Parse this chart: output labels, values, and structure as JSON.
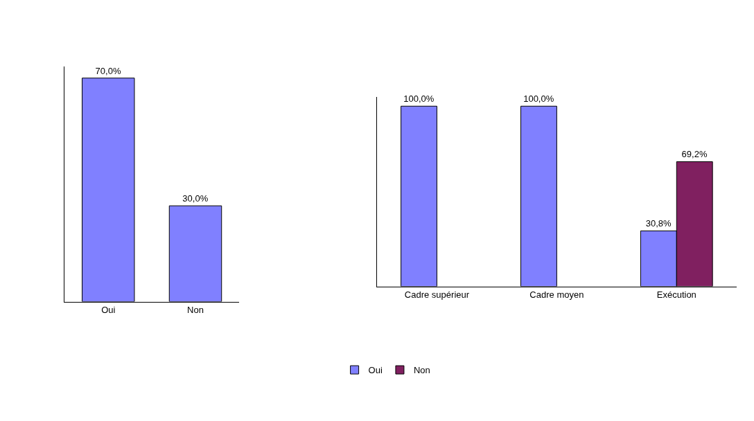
{
  "chart_data": [
    {
      "type": "bar",
      "categories": [
        "Oui",
        "Non"
      ],
      "series": [
        {
          "color": "#8080ff",
          "values": [
            70.0,
            30.0
          ],
          "value_labels": [
            "70,0%",
            "30,0%"
          ]
        }
      ],
      "legend": false,
      "tick_labels": "x"
    },
    {
      "type": "bar",
      "categories": [
        "Cadre supérieur",
        "Cadre moyen",
        "Exécution"
      ],
      "series": [
        {
          "name": "Oui",
          "color": "#8080ff",
          "values": [
            100.0,
            100.0,
            30.8
          ],
          "value_labels": [
            "100,0%",
            "100,0%",
            "30,8%"
          ]
        },
        {
          "name": "Non",
          "color": "#802060",
          "values": [
            null,
            null,
            69.2
          ],
          "value_labels": [
            null,
            null,
            "69,2%"
          ]
        }
      ],
      "legend": "bottom",
      "tick_labels": "x"
    }
  ]
}
